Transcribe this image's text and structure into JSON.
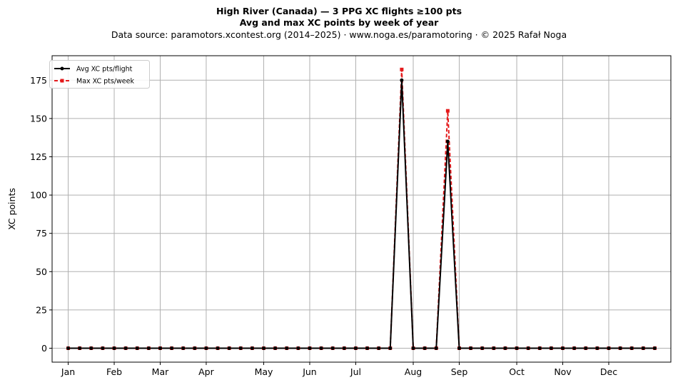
{
  "chart_data": {
    "type": "line",
    "title": "High River (Canada)  —  3 PPG XC flights ≥100 pts",
    "subtitle": "Avg and max XC points by week of year",
    "source": "Data source: paramotors.xcontest.org (2014–2025)  ·  www.noga.es/paramotoring  ·  © 2025 Rafał Noga",
    "xlabel": "",
    "ylabel": "XC points",
    "x": [
      1,
      2,
      3,
      4,
      5,
      6,
      7,
      8,
      9,
      10,
      11,
      12,
      13,
      14,
      15,
      16,
      17,
      18,
      19,
      20,
      21,
      22,
      23,
      24,
      25,
      26,
      27,
      28,
      29,
      30,
      31,
      32,
      33,
      34,
      35,
      36,
      37,
      38,
      39,
      40,
      41,
      42,
      43,
      44,
      45,
      46,
      47,
      48,
      49,
      50,
      51,
      52
    ],
    "xlim": [
      -0.4,
      53.4
    ],
    "ylim": [
      -9.1,
      191
    ],
    "x_ticks": [
      {
        "label": "Jan",
        "x": 1
      },
      {
        "label": "Feb",
        "x": 5
      },
      {
        "label": "Mar",
        "x": 9
      },
      {
        "label": "Apr",
        "x": 13
      },
      {
        "label": "May",
        "x": 18
      },
      {
        "label": "Jun",
        "x": 22
      },
      {
        "label": "Jul",
        "x": 26
      },
      {
        "label": "Aug",
        "x": 31
      },
      {
        "label": "Sep",
        "x": 35
      },
      {
        "label": "Oct",
        "x": 40
      },
      {
        "label": "Nov",
        "x": 44
      },
      {
        "label": "Dec",
        "x": 48
      }
    ],
    "y_ticks": [
      0,
      25,
      50,
      75,
      100,
      125,
      150,
      175
    ],
    "grid": true,
    "legend_position": "top-left",
    "series": [
      {
        "name": "Avg XC pts/flight",
        "color": "#000000",
        "style": "solid",
        "marker": "circle",
        "values": [
          0,
          0,
          0,
          0,
          0,
          0,
          0,
          0,
          0,
          0,
          0,
          0,
          0,
          0,
          0,
          0,
          0,
          0,
          0,
          0,
          0,
          0,
          0,
          0,
          0,
          0,
          0,
          0,
          0,
          175,
          0,
          0,
          0,
          135,
          0,
          0,
          0,
          0,
          0,
          0,
          0,
          0,
          0,
          0,
          0,
          0,
          0,
          0,
          0,
          0,
          0,
          0
        ]
      },
      {
        "name": "Max XC pts/week",
        "color": "#e41a1c",
        "style": "dashed",
        "marker": "square",
        "values": [
          0,
          0,
          0,
          0,
          0,
          0,
          0,
          0,
          0,
          0,
          0,
          0,
          0,
          0,
          0,
          0,
          0,
          0,
          0,
          0,
          0,
          0,
          0,
          0,
          0,
          0,
          0,
          0,
          0,
          182,
          0,
          0,
          0,
          155,
          0,
          0,
          0,
          0,
          0,
          0,
          0,
          0,
          0,
          0,
          0,
          0,
          0,
          0,
          0,
          0,
          0,
          0
        ]
      }
    ]
  }
}
